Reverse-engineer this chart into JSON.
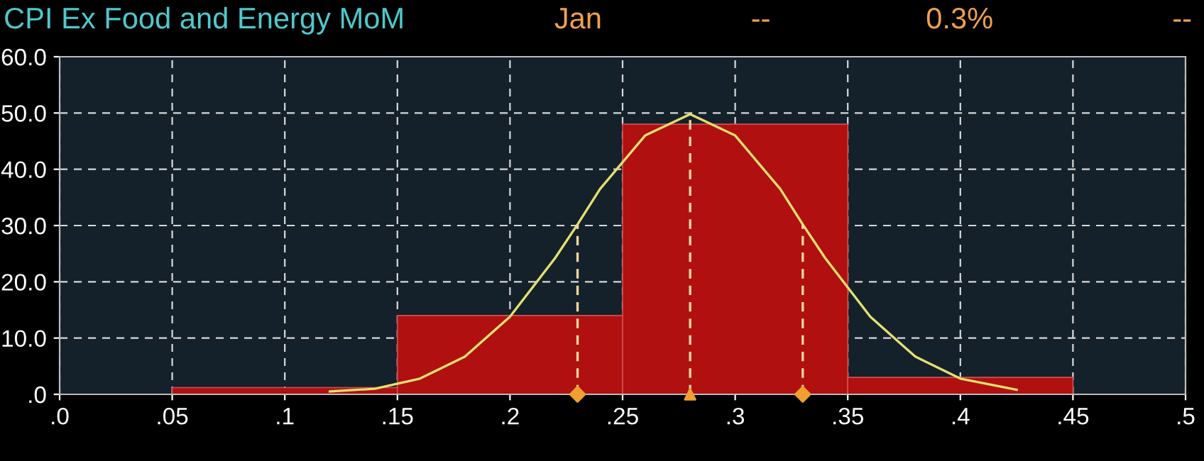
{
  "chart_data": {
    "type": "histogram",
    "title": "CPI Ex Food and Energy MoM",
    "annotations": [
      "Jan",
      "--",
      "0.3%",
      "--"
    ],
    "bins": [
      0.05,
      0.15,
      0.25,
      0.35,
      0.45
    ],
    "values": [
      1.2,
      14.0,
      48.0,
      3.0
    ],
    "color": "#b01010",
    "series": [
      {
        "type": "line",
        "color": "#e4e070",
        "line_style": "solid",
        "x": [
          0.12,
          0.14,
          0.16,
          0.18,
          0.2,
          0.22,
          0.23,
          0.24,
          0.26,
          0.28,
          0.3,
          0.32,
          0.33,
          0.34,
          0.36,
          0.38,
          0.4,
          0.425
        ],
        "values": [
          0.5,
          1.0,
          2.8,
          6.7,
          13.8,
          24.2,
          30.2,
          36.5,
          46.0,
          49.8,
          46.0,
          36.5,
          30.2,
          24.2,
          13.8,
          6.7,
          2.8,
          0.8
        ]
      },
      {
        "type": "line",
        "color": "#f3d7a0",
        "line_style": "dashed",
        "x": [
          0.23,
          0.23
        ],
        "values": [
          0,
          30.2
        ]
      },
      {
        "type": "line",
        "color": "#f3d7a0",
        "line_style": "dashed",
        "x": [
          0.28,
          0.28
        ],
        "values": [
          0,
          49.8
        ]
      },
      {
        "type": "line",
        "color": "#f3d7a0",
        "line_style": "dashed",
        "x": [
          0.33,
          0.33
        ],
        "values": [
          0,
          30.2
        ]
      },
      {
        "type": "scatter",
        "color": "#f0a030",
        "marker": "diamond",
        "x": [
          0.23,
          0.33
        ],
        "values": [
          0,
          0
        ]
      },
      {
        "type": "scatter",
        "color": "#f0a030",
        "marker": "triangle",
        "x": [
          0.28
        ],
        "values": [
          0
        ]
      }
    ],
    "xlim": [
      0,
      0.5
    ],
    "ylim": [
      0,
      60
    ],
    "xticks": [
      {
        "value": 0,
        "label": ".0"
      },
      {
        "value": 0.05,
        "label": ".05"
      },
      {
        "value": 0.1,
        "label": ".1"
      },
      {
        "value": 0.15,
        "label": ".15"
      },
      {
        "value": 0.2,
        "label": ".2"
      },
      {
        "value": 0.25,
        "label": ".25"
      },
      {
        "value": 0.3,
        "label": ".3"
      },
      {
        "value": 0.35,
        "label": ".35"
      },
      {
        "value": 0.4,
        "label": ".4"
      },
      {
        "value": 0.45,
        "label": ".45"
      },
      {
        "value": 0.5,
        "label": ".5"
      }
    ],
    "yticks": [
      {
        "value": 0,
        "label": ".0"
      },
      {
        "value": 10,
        "label": "10.0"
      },
      {
        "value": 20,
        "label": "20.0"
      },
      {
        "value": 30,
        "label": "30.0"
      },
      {
        "value": 40,
        "label": "40.0"
      },
      {
        "value": 50,
        "label": "50.0"
      },
      {
        "value": 60,
        "label": "60.0"
      }
    ],
    "grid": true,
    "legend": false
  }
}
